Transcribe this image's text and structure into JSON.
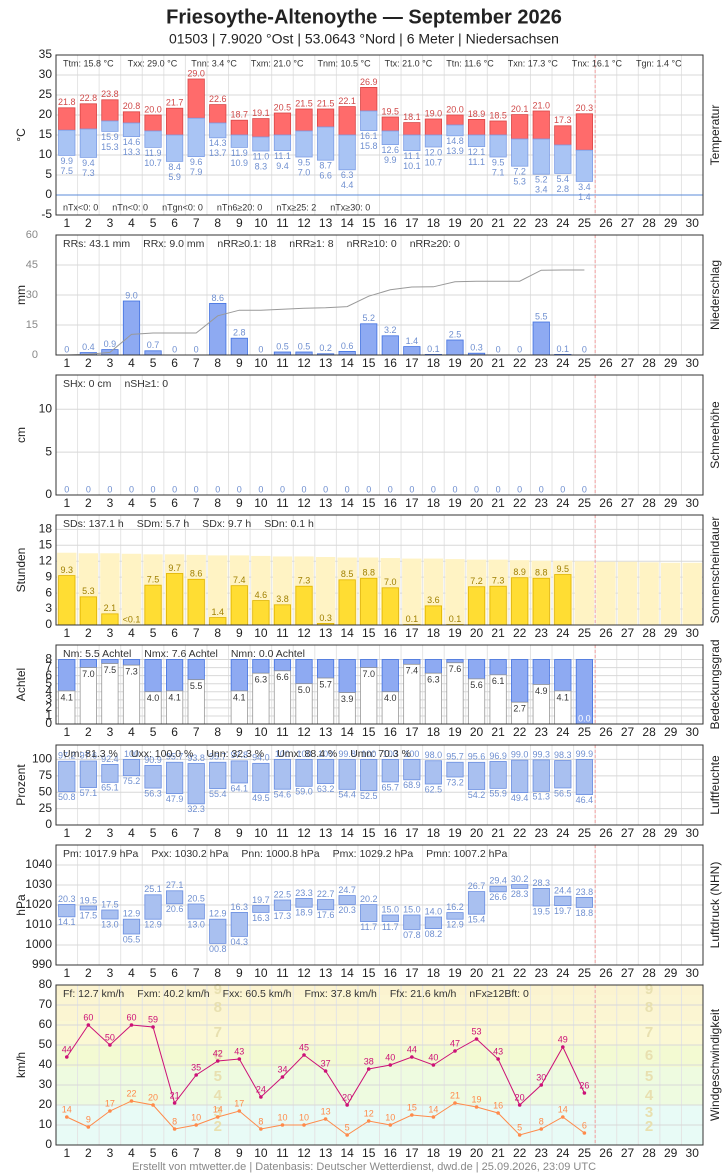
{
  "header": {
    "title": "Friesoythe-Altenoythe  —  September 2026",
    "subtitle": "01503  |  7.9020 °Ost  |  53.0643 °Nord  |  6 Meter  |  Niedersachsen",
    "footer": "Erstellt von mtwetter.de | Datenbasis: Deutscher Wetterdienst, dwd.de | 25.09.2026, 23:09 UTC"
  },
  "days": [
    1,
    2,
    3,
    4,
    5,
    6,
    7,
    8,
    9,
    10,
    11,
    12,
    13,
    14,
    15,
    16,
    17,
    18,
    19,
    20,
    21,
    22,
    23,
    24,
    25,
    26,
    27,
    28,
    29,
    30
  ],
  "chart_data": [
    {
      "type": "range",
      "ylabel": "°C",
      "side_label": "Temperatur",
      "ylim": [
        -5,
        35
      ],
      "yticks": [
        -5,
        0,
        5,
        10,
        15,
        20,
        25,
        30,
        35
      ],
      "zero_line": true,
      "stats_small": true,
      "stats": [
        "Ttm: 15.8 °C",
        "Txx: 29.0 °C",
        "Tnn: 3.4 °C",
        "Txm: 21.0 °C",
        "Tnm: 10.5 °C",
        "Ttx: 21.0 °C",
        "Ttn: 11.6 °C",
        "Txn: 17.3 °C",
        "Tnx: 16.1 °C",
        "Tgn: 1.4 °C"
      ],
      "stats_bottom": [
        "nTx<0: 0",
        "nTn<0: 0",
        "nTgn<0: 0",
        "nTn6≥20: 0",
        "nTx≥25: 2",
        "nTx≥30: 0"
      ],
      "max_color": "#ff6b6b",
      "min_color": "#a9c4f4",
      "max_label_color": "#d04a4a",
      "min_label_color": "#6f8fd0",
      "max": [
        21.8,
        22.8,
        23.8,
        20.8,
        20.0,
        21.7,
        29.0,
        22.6,
        18.7,
        19.1,
        20.5,
        21.5,
        21.5,
        22.1,
        26.9,
        19.5,
        18.1,
        19.0,
        20.0,
        18.9,
        18.5,
        20.1,
        21.0,
        17.3,
        20.3
      ],
      "mean": [
        16.2,
        16.5,
        18.5,
        18.0,
        16.0,
        15.0,
        19.2,
        18.0,
        15.0,
        14.5,
        15.0,
        16.0,
        17.0,
        15.0,
        21.0,
        16.0,
        15.0,
        15.0,
        17.5,
        15.0,
        15.0,
        14.0,
        14.0,
        12.5,
        11.2
      ],
      "min": [
        9.9,
        9.4,
        15.9,
        14.6,
        11.9,
        8.4,
        9.6,
        14.3,
        11.9,
        11.0,
        11.1,
        9.5,
        8.7,
        6.3,
        16.1,
        12.6,
        11.1,
        12.0,
        14.8,
        12.1,
        9.5,
        7.2,
        5.2,
        5.4,
        3.4
      ],
      "ground_min": [
        7.5,
        7.3,
        15.3,
        13.3,
        10.7,
        5.9,
        7.9,
        13.7,
        10.9,
        8.3,
        9.4,
        7.0,
        6.6,
        4.4,
        15.8,
        9.9,
        10.1,
        10.7,
        13.9,
        11.1,
        7.1,
        5.3,
        3.4,
        2.8,
        1.4
      ],
      "max_labels": [
        "21.8",
        "22.8",
        "23.8",
        "20.8",
        "20.0",
        "21.7",
        "29.0",
        "22.6",
        "18.7",
        "19.1",
        "20.5",
        "21.5",
        "21.5",
        "22.1",
        "26.9",
        "19.5",
        "18.1",
        "19.0",
        "20.0",
        "18.9",
        "18.5",
        "20.1",
        "21.0",
        "17.3",
        "20.3"
      ],
      "min_labels": [
        "9.9",
        "9.4",
        "15.9",
        "14.6",
        "11.9",
        "8.4",
        "9.6",
        "14.3",
        "11.9",
        "11.0",
        "11.1",
        "9.5",
        "8.7",
        "6.3",
        "16.1",
        "12.6",
        "11.1",
        "12.0",
        "14.8",
        "12.1",
        "9.5",
        "7.2",
        "5.2",
        "5.4",
        "3.4"
      ],
      "ground_min_labels": [
        "7.5",
        "7.3",
        "15.3",
        "13.3",
        "10.7",
        "5.9",
        "7.9",
        "13.7",
        "10.9",
        "8.3",
        "9.4",
        "7.0",
        "6.6",
        "4.4",
        "15.8",
        "9.9",
        "10.1",
        "10.7",
        "13.9",
        "11.1",
        "7.1",
        "5.3",
        "3.4",
        "2.8",
        "1.4"
      ]
    },
    {
      "type": "bar",
      "ylabel": "mm",
      "side_label": "Niederschlag",
      "ylim": [
        0,
        20
      ],
      "y2lim": [
        0,
        60
      ],
      "y2ticks": [
        0,
        15,
        30,
        45,
        60
      ],
      "cumulative": true,
      "cumulative_color": "#999999",
      "stats": [
        "RRs: 43.1 mm",
        "RRx: 9.0 mm",
        "nRR≥0.1: 18",
        "nRR≥1: 8",
        "nRR≥10: 0",
        "nRR≥20: 0"
      ],
      "color": "#8eaaf2",
      "border": "#4070e0",
      "label_color": "#6f8fd0",
      "values": [
        0,
        0.4,
        0.9,
        9.0,
        0.7,
        0,
        0,
        8.6,
        2.8,
        0,
        0.5,
        0.5,
        0.2,
        0.6,
        5.2,
        3.2,
        1.4,
        0.1,
        2.5,
        0.3,
        0,
        0,
        5.5,
        0.1,
        0
      ],
      "value_labels": [
        "0",
        "0.4",
        "0.9",
        "9.0",
        "0.7",
        "0",
        "0",
        "8.6",
        "2.8",
        "0",
        "0.5",
        "0.5",
        "0.2",
        "0.6",
        "5.2",
        "3.2",
        "1.4",
        "0.1",
        "2.5",
        "0.3",
        "0",
        "0",
        "5.5",
        "0.1",
        "0"
      ]
    },
    {
      "type": "bar",
      "ylabel": "cm",
      "side_label": "Schneehöhe",
      "ylim": [
        0,
        14
      ],
      "yticks": [
        0,
        5,
        10
      ],
      "stats": [
        "SHx: 0 cm",
        "nSH≥1: 0"
      ],
      "color": "#8eaaf2",
      "border": "#4070e0",
      "label_color": "#6f8fd0",
      "values": [
        0,
        0,
        0,
        0,
        0,
        0,
        0,
        0,
        0,
        0,
        0,
        0,
        0,
        0,
        0,
        0,
        0,
        0,
        0,
        0,
        0,
        0,
        0,
        0,
        0
      ]
    },
    {
      "type": "bar",
      "ylabel": "Stunden",
      "side_label": "Sonnenscheindauer",
      "ylim": [
        0,
        20.7
      ],
      "yticks": [
        0,
        3,
        6,
        9,
        12,
        15,
        18
      ],
      "stats": [
        "SDs: 137.1 h",
        "SDm: 5.7 h",
        "SDx: 9.7 h",
        "SDn: 0.1 h"
      ],
      "color": "#ffdd33",
      "border": "#e0b400",
      "label_color": "#a08000",
      "possible_color": "#fff3c4",
      "possible": [
        13.6,
        13.5,
        13.5,
        13.4,
        13.3,
        13.3,
        13.2,
        13.1,
        13.1,
        13.0,
        12.9,
        12.9,
        12.8,
        12.7,
        12.7,
        12.6,
        12.5,
        12.5,
        12.4,
        12.3,
        12.3,
        12.2,
        12.1,
        12.1,
        12.0,
        11.9,
        11.9,
        11.8,
        11.7,
        11.7
      ],
      "values": [
        9.3,
        5.3,
        2.1,
        0,
        7.5,
        9.7,
        8.6,
        1.4,
        7.4,
        4.6,
        3.8,
        7.3,
        0.3,
        8.5,
        8.8,
        7.0,
        0.1,
        3.6,
        0.1,
        7.2,
        7.3,
        8.9,
        8.8,
        9.5,
        0
      ],
      "value_labels": [
        "9.3",
        "5.3",
        "2.1",
        "<0.1",
        "7.5",
        "9.7",
        "8.6",
        "1.4",
        "7.4",
        "4.6",
        "3.8",
        "7.3",
        "0.3",
        "8.5",
        "8.8",
        "7.0",
        "0.1",
        "3.6",
        "0.1",
        "7.2",
        "7.3",
        "8.9",
        "8.8",
        "9.5",
        null
      ]
    },
    {
      "type": "cloud",
      "ylabel": "Achtel",
      "side_label": "Bedeckungsgrad",
      "ylim": [
        0,
        9.8
      ],
      "yticks": [
        0,
        1,
        2,
        3,
        4,
        5,
        6,
        7,
        8
      ],
      "stats": [
        "Nm: 5.5 Achtel",
        "Nmx: 7.6 Achtel",
        "Nmn: 0.0 Achtel"
      ],
      "color": "#8eaaf2",
      "border": "#4070e0",
      "values": [
        4.1,
        7.0,
        7.5,
        7.3,
        4.0,
        4.1,
        5.5,
        null,
        4.1,
        6.3,
        6.6,
        5.0,
        5.7,
        3.9,
        7.0,
        4.0,
        7.4,
        6.3,
        7.6,
        5.6,
        6.1,
        2.7,
        4.9,
        4.1,
        0.0
      ],
      "value_labels": [
        "4.1",
        "7.0",
        "7.5",
        "7.3",
        "4.0",
        "4.1",
        "5.5",
        null,
        "4.1",
        "6.3",
        "6.6",
        "5.0",
        "5.7",
        "3.9",
        "7.0",
        "4.0",
        "7.4",
        "6.3",
        "7.6",
        "5.6",
        "6.1",
        "2.7",
        "4.9",
        "4.1",
        "0.0"
      ]
    },
    {
      "type": "range",
      "ylabel": "Prozent",
      "side_label": "Luftfeuchte",
      "ylim": [
        0,
        122
      ],
      "yticks": [
        0,
        25,
        50,
        75,
        100
      ],
      "stats": [
        "Um: 81.3 %",
        "Uxx: 100.0 %",
        "Unn: 32.3 %",
        "Umx: 88.4 %",
        "Umn: 70.3 %"
      ],
      "color": "#a9c0f0",
      "border": "#6a8ee0",
      "max_label_color": "#6f8fd0",
      "min_label_color": "#6f8fd0",
      "max": [
        97.2,
        97.6,
        92.4,
        100,
        90.9,
        95.7,
        93.8,
        95.7,
        97.8,
        94.0,
        100,
        100,
        100,
        99.8,
        100,
        100,
        100,
        98.0,
        95.7,
        95.6,
        96.9,
        99.0,
        99.3,
        98.3,
        99.9
      ],
      "min": [
        50.8,
        57.1,
        65.1,
        75.2,
        56.3,
        47.9,
        32.3,
        55.4,
        64.1,
        49.5,
        54.6,
        59.0,
        63.2,
        54.4,
        52.5,
        65.7,
        68.9,
        62.5,
        73.2,
        54.2,
        55.9,
        49.4,
        51.3,
        56.5,
        46.4
      ],
      "max_labels": [
        "97.2",
        "97.6",
        "92.4",
        "100",
        "90.9",
        "95.7",
        "93.8",
        "95.7",
        "97.8",
        "94.0",
        "100",
        "100",
        "100",
        "99.8",
        "100",
        "100",
        "100",
        "98.0",
        "95.7",
        "95.6",
        "96.9",
        "99.0",
        "99.3",
        "98.3",
        "99.9"
      ],
      "min_labels": [
        "50.8",
        "57.1",
        "65.1",
        "75.2",
        "56.3",
        "47.9",
        "32.3",
        "55.4",
        "64.1",
        "49.5",
        "54.6",
        "59.0",
        "63.2",
        "54.4",
        "52.5",
        "65.7",
        "68.9",
        "62.5",
        "73.2",
        "54.2",
        "55.9",
        "49.4",
        "51.3",
        "56.5",
        "46.4"
      ]
    },
    {
      "type": "range",
      "ylabel": "hPa",
      "side_label": "Luftdruck (NHN)",
      "ylim": [
        990,
        1050
      ],
      "yticks": [
        990,
        1000,
        1010,
        1020,
        1030,
        1040
      ],
      "stats": [
        "Pm: 1017.9 hPa",
        "Pxx: 1030.2 hPa",
        "Pnn: 1000.8 hPa",
        "Pmx: 1029.2 hPa",
        "Pmn: 1007.2 hPa"
      ],
      "color": "#a9c0f0",
      "border": "#6a8ee0",
      "max_label_color": "#6f8fd0",
      "min_label_color": "#6f8fd0",
      "max": [
        1020.3,
        1019.5,
        1017.5,
        1012.9,
        1025.1,
        1027.1,
        1020.5,
        1012.9,
        1016.3,
        1019.7,
        1022.5,
        1023.3,
        1022.7,
        1024.7,
        1020.2,
        1015.0,
        1015.0,
        1014.0,
        1016.2,
        1026.7,
        1029.4,
        1030.2,
        1028.3,
        1024.4,
        1023.8
      ],
      "min": [
        1014.1,
        1017.5,
        1013.0,
        1005.5,
        1012.9,
        1020.6,
        1013.0,
        1000.8,
        1004.3,
        1016.3,
        1017.3,
        1018.9,
        1017.6,
        1020.3,
        1011.7,
        1011.7,
        1007.8,
        1008.2,
        1012.9,
        1015.4,
        1026.6,
        1028.3,
        1019.5,
        1019.7,
        1018.8
      ],
      "max_labels": [
        "20.3",
        "19.5",
        "17.5",
        "12.9",
        "25.1",
        "27.1",
        "20.5",
        "12.9",
        "16.3",
        "19.7",
        "22.5",
        "23.3",
        "22.7",
        "24.7",
        "20.2",
        "15.0",
        "15.0",
        "14.0",
        "16.2",
        "26.7",
        "29.4",
        "30.2",
        "28.3",
        "24.4",
        "23.8"
      ],
      "min_labels": [
        "14.1",
        "17.5",
        "13.0",
        "05.5",
        "12.9",
        "20.6",
        "13.0",
        "00.8",
        "04.3",
        "16.3",
        "17.3",
        "18.9",
        "17.6",
        "20.3",
        "11.7",
        "11.7",
        "07.8",
        "08.2",
        "12.9",
        "15.4",
        "26.6",
        "28.3",
        "19.5",
        "19.7",
        "18.8"
      ]
    },
    {
      "type": "line",
      "ylabel": "km/h",
      "side_label": "Windgeschwindigkeit",
      "ylim": [
        0,
        80
      ],
      "yticks": [
        0,
        10,
        20,
        30,
        40,
        50,
        60,
        70,
        80
      ],
      "stats": [
        "Ff: 12.7 km/h",
        "Fxm: 40.2 km/h",
        "Fxx: 60.5 km/h",
        "Fmx: 37.8 km/h",
        "Ffx: 21.6 km/h",
        "nFx≥12Bft: 0"
      ],
      "beaufort": {
        "levels": [
          2,
          3,
          4,
          5,
          6,
          7,
          8,
          9
        ],
        "lower": [
          6,
          12,
          20,
          29,
          39,
          50,
          62,
          75
        ],
        "colors": [
          "#e8fbf6",
          "#e8fbf6",
          "#eefbe0",
          "#eefbe0",
          "#f3fad2",
          "#fbf8d4",
          "#fbf5d2",
          "#fbf3d0"
        ]
      },
      "series": [
        {
          "color": "#cc1177",
          "values": [
            44,
            60,
            50,
            60,
            59,
            21,
            35,
            42,
            43,
            24,
            34,
            45,
            37,
            20,
            38,
            40,
            44,
            40,
            47,
            53,
            43,
            20,
            30,
            49,
            26
          ]
        },
        {
          "color": "#ff8a4a",
          "values": [
            14,
            9,
            17,
            22,
            20,
            8,
            10,
            14,
            17,
            8,
            10,
            10,
            13,
            5,
            12,
            10,
            15,
            14,
            21,
            19,
            16,
            5,
            8,
            14,
            6
          ]
        }
      ]
    }
  ]
}
